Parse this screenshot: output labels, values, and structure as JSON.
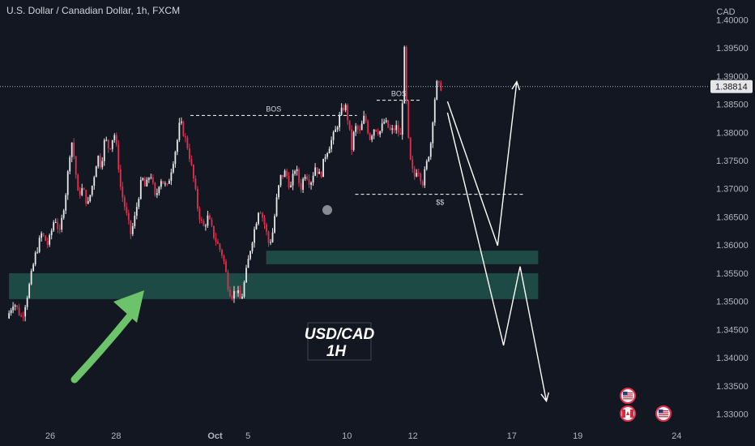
{
  "header": {
    "symbol_title": "U.S. Dollar / Canadian Dollar, 1h, FXCM"
  },
  "chart_data": {
    "type": "candlestick",
    "title": "U.S. Dollar / Canadian Dollar, 1h, FXCM",
    "y_axis_label": "CAD",
    "y_range": [
      1.3275,
      1.4035
    ],
    "y_ticks": [
      1.4,
      1.395,
      1.39,
      1.385,
      1.38,
      1.375,
      1.37,
      1.365,
      1.36,
      1.355,
      1.35,
      1.345,
      1.34,
      1.335,
      1.33
    ],
    "y_tick_labels": [
      "1.40000",
      "1.39500",
      "1.39000",
      "1.38500",
      "1.38000",
      "1.37500",
      "1.37000",
      "1.36500",
      "1.36000",
      "1.35500",
      "1.35000",
      "1.34500",
      "1.34000",
      "1.33500",
      "1.33000"
    ],
    "x_ticks": [
      {
        "label": "26",
        "day": 0
      },
      {
        "label": "28",
        "day": 2
      },
      {
        "label": "Oct",
        "day": 5
      },
      {
        "label": "5",
        "day": 6
      },
      {
        "label": "10",
        "day": 9
      },
      {
        "label": "12",
        "day": 11
      },
      {
        "label": "17",
        "day": 14
      },
      {
        "label": "19",
        "day": 16
      },
      {
        "label": "24",
        "day": 19
      }
    ],
    "current_price": 1.38814,
    "current_price_label": "1.38814",
    "colors": {
      "up": "#e8e8ea",
      "down": "#e0304d",
      "zone": "#1f4d48",
      "arrow_up": "#6cc36a",
      "projection": "#ffffff",
      "price_line": "#b0b0b8"
    },
    "price_path": [
      [
        -1.25,
        1.347
      ],
      [
        -1.05,
        1.35
      ],
      [
        -0.8,
        1.347
      ],
      [
        -0.6,
        1.352
      ],
      [
        -0.4,
        1.358
      ],
      [
        -0.2,
        1.362
      ],
      [
        0.0,
        1.36
      ],
      [
        0.2,
        1.365
      ],
      [
        0.35,
        1.362
      ],
      [
        0.55,
        1.37
      ],
      [
        0.7,
        1.379
      ],
      [
        0.8,
        1.375
      ],
      [
        0.9,
        1.369
      ],
      [
        1.05,
        1.37
      ],
      [
        1.2,
        1.367
      ],
      [
        1.35,
        1.371
      ],
      [
        1.5,
        1.376
      ],
      [
        1.6,
        1.374
      ],
      [
        1.72,
        1.379
      ],
      [
        1.85,
        1.377
      ],
      [
        2.0,
        1.38
      ],
      [
        2.1,
        1.376
      ],
      [
        2.2,
        1.37
      ],
      [
        2.35,
        1.366
      ],
      [
        2.5,
        1.362
      ],
      [
        2.6,
        1.364
      ],
      [
        2.75,
        1.369
      ],
      [
        2.85,
        1.372
      ],
      [
        2.95,
        1.37
      ],
      [
        3.1,
        1.373
      ],
      [
        3.25,
        1.368
      ],
      [
        3.4,
        1.372
      ],
      [
        3.6,
        1.37
      ],
      [
        3.75,
        1.374
      ],
      [
        3.9,
        1.378
      ],
      [
        4.0,
        1.382
      ],
      [
        4.1,
        1.38
      ],
      [
        4.25,
        1.377
      ],
      [
        4.4,
        1.372
      ],
      [
        4.55,
        1.366
      ],
      [
        4.7,
        1.363
      ],
      [
        4.85,
        1.365
      ],
      [
        5.0,
        1.362
      ],
      [
        5.15,
        1.36
      ],
      [
        5.3,
        1.358
      ],
      [
        5.45,
        1.353
      ],
      [
        5.55,
        1.351
      ],
      [
        5.7,
        1.352
      ],
      [
        5.85,
        1.35
      ],
      [
        6.0,
        1.355
      ],
      [
        6.15,
        1.36
      ],
      [
        6.3,
        1.364
      ],
      [
        6.4,
        1.367
      ],
      [
        6.55,
        1.364
      ],
      [
        6.7,
        1.36
      ],
      [
        6.8,
        1.362
      ],
      [
        6.95,
        1.369
      ],
      [
        7.05,
        1.372
      ],
      [
        7.2,
        1.373
      ],
      [
        7.35,
        1.37
      ],
      [
        7.5,
        1.374
      ],
      [
        7.65,
        1.37
      ],
      [
        7.8,
        1.373
      ],
      [
        7.95,
        1.371
      ],
      [
        8.1,
        1.374
      ],
      [
        8.25,
        1.372
      ],
      [
        8.4,
        1.376
      ],
      [
        8.55,
        1.378
      ],
      [
        8.7,
        1.38
      ],
      [
        8.85,
        1.383
      ],
      [
        9.0,
        1.385
      ],
      [
        9.1,
        1.382
      ],
      [
        9.2,
        1.377
      ],
      [
        9.3,
        1.381
      ],
      [
        9.45,
        1.38
      ],
      [
        9.6,
        1.383
      ],
      [
        9.75,
        1.379
      ],
      [
        9.9,
        1.381
      ],
      [
        10.05,
        1.38
      ],
      [
        10.2,
        1.382
      ],
      [
        10.4,
        1.38
      ],
      [
        10.55,
        1.381
      ],
      [
        10.7,
        1.379
      ],
      [
        10.8,
        1.395
      ],
      [
        10.9,
        1.38
      ],
      [
        11.0,
        1.374
      ],
      [
        11.1,
        1.372
      ],
      [
        11.2,
        1.374
      ],
      [
        11.35,
        1.371
      ],
      [
        11.5,
        1.375
      ],
      [
        11.6,
        1.378
      ],
      [
        11.7,
        1.385
      ],
      [
        11.8,
        1.389
      ],
      [
        11.85,
        1.3881
      ]
    ],
    "zones": [
      {
        "day_from": -1.25,
        "day_to": 14.8,
        "low": 1.3504,
        "high": 1.355
      },
      {
        "day_from": 6.55,
        "day_to": 14.8,
        "low": 1.3566,
        "high": 1.359
      }
    ],
    "annotations": [
      {
        "text": "BOS",
        "type": "dashed_line",
        "day_from": 4.25,
        "day_to": 9.3,
        "price": 1.383
      },
      {
        "text": "BOS",
        "type": "dashed_line",
        "day_from": 9.9,
        "day_to": 11.25,
        "price": 1.3857
      },
      {
        "text": "$$",
        "type": "dashed_line",
        "day_from": 9.25,
        "day_to": 14.4,
        "price": 1.369
      }
    ],
    "projection_paths": [
      [
        [
          12.05,
          1.3855
        ],
        [
          13.57,
          1.3599
        ],
        [
          14.15,
          1.389
        ]
      ],
      [
        [
          12.05,
          1.3835
        ],
        [
          13.75,
          1.3422
        ],
        [
          14.25,
          1.3562
        ],
        [
          15.05,
          1.3323
        ]
      ]
    ],
    "label_box": {
      "line1": "USD/CAD",
      "line2": "1H"
    }
  }
}
